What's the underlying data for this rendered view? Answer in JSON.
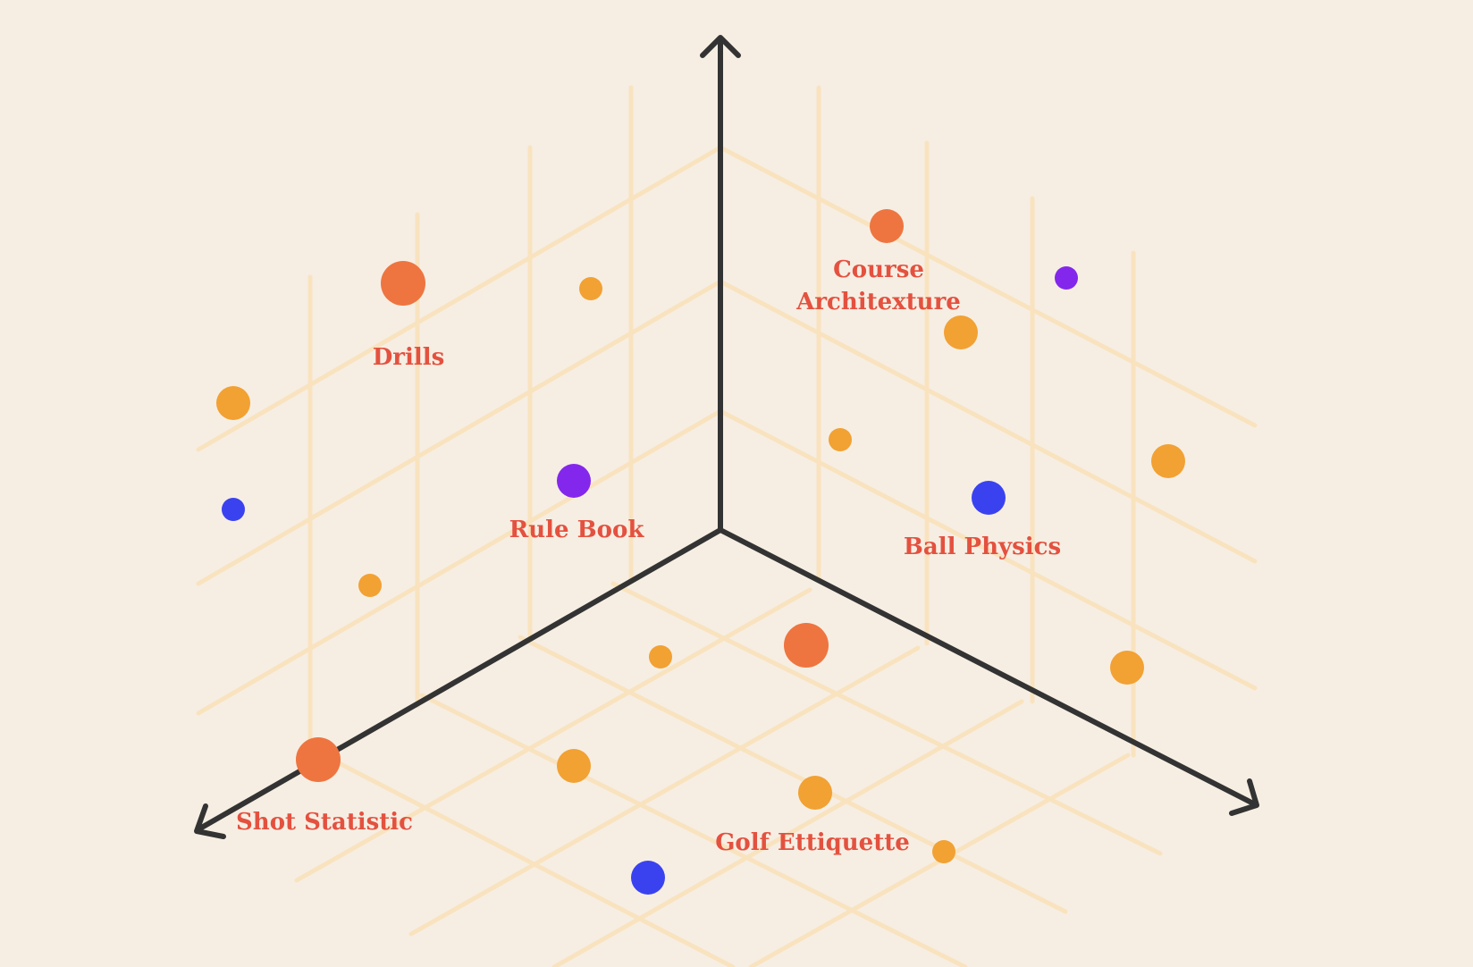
{
  "colors": {
    "background": "#f6eee3",
    "grid": "#f9e3bf",
    "axis": "#333333",
    "label": "#e4513f",
    "dot_orange_large": "#ee7540",
    "dot_amber": "#f2a133",
    "dot_blue": "#3a42f0",
    "dot_purple": "#8427ec"
  },
  "labels": {
    "drills": "Drills",
    "course_architecture_line1": "Course",
    "course_architecture_line2": "Architexture",
    "rule_book": "Rule Book",
    "ball_physics": "Ball Physics",
    "shot_statistic": "Shot Statistic",
    "golf_etiquette": "Golf Ettiquette"
  },
  "dots": [
    {
      "id": "dot-drills",
      "color": "dot_orange_large"
    },
    {
      "id": "dot-top-amber-1",
      "color": "dot_amber"
    },
    {
      "id": "dot-left-amber",
      "color": "dot_amber"
    },
    {
      "id": "dot-left-blue",
      "color": "dot_blue"
    },
    {
      "id": "dot-rule-book",
      "color": "dot_purple"
    },
    {
      "id": "dot-left-low-amber",
      "color": "dot_amber"
    },
    {
      "id": "dot-course",
      "color": "dot_orange_large"
    },
    {
      "id": "dot-right-purple",
      "color": "dot_purple"
    },
    {
      "id": "dot-course-amber",
      "color": "dot_amber"
    },
    {
      "id": "dot-center-amber",
      "color": "dot_amber"
    },
    {
      "id": "dot-far-right-amber",
      "color": "dot_amber"
    },
    {
      "id": "dot-ball-physics",
      "color": "dot_blue"
    },
    {
      "id": "dot-floor-small-amber",
      "color": "dot_amber"
    },
    {
      "id": "dot-floor-orange",
      "color": "dot_orange_large"
    },
    {
      "id": "dot-right-low-amber",
      "color": "dot_amber"
    },
    {
      "id": "dot-shot-statistic",
      "color": "dot_orange_large"
    },
    {
      "id": "dot-floor-amber-1",
      "color": "dot_amber"
    },
    {
      "id": "dot-golf-etiquette",
      "color": "dot_amber"
    },
    {
      "id": "dot-floor-right-amber",
      "color": "dot_amber"
    },
    {
      "id": "dot-bottom-blue",
      "color": "dot_blue"
    }
  ]
}
